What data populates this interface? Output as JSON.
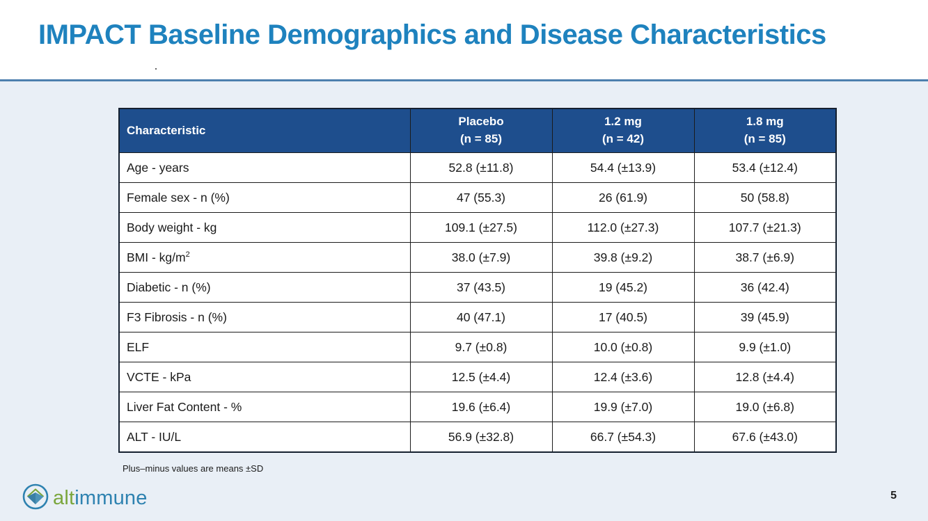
{
  "slide": {
    "title": "IMPACT Baseline Demographics and Disease Characteristics",
    "page_number": "5"
  },
  "table": {
    "header": {
      "characteristic": "Characteristic",
      "columns": [
        {
          "line1": "Placebo",
          "line2": "(n = 85)"
        },
        {
          "line1": "1.2 mg",
          "line2": "(n = 42)"
        },
        {
          "line1": "1.8 mg",
          "line2": "(n = 85)"
        }
      ]
    },
    "rows": [
      {
        "label": "Age - years",
        "values": [
          "52.8 (±11.8)",
          "54.4 (±13.9)",
          "53.4 (±12.4)"
        ]
      },
      {
        "label": "Female sex - n (%)",
        "values": [
          "47 (55.3)",
          "26 (61.9)",
          "50 (58.8)"
        ]
      },
      {
        "label": "Body weight - kg",
        "values": [
          "109.1 (±27.5)",
          "112.0 (±27.3)",
          "107.7 (±21.3)"
        ]
      },
      {
        "label": "BMI -  kg/m",
        "label_sup": "2",
        "values": [
          "38.0 (±7.9)",
          "39.8 (±9.2)",
          "38.7 (±6.9)"
        ]
      },
      {
        "label": "Diabetic - n (%)",
        "values": [
          "37 (43.5)",
          "19 (45.2)",
          "36 (42.4)"
        ]
      },
      {
        "label": "F3 Fibrosis - n (%)",
        "values": [
          "40 (47.1)",
          "17 (40.5)",
          "39 (45.9)"
        ]
      },
      {
        "label": "ELF",
        "values": [
          "9.7 (±0.8)",
          "10.0 (±0.8)",
          "9.9 (±1.0)"
        ]
      },
      {
        "label": "VCTE - kPa",
        "values": [
          "12.5 (±4.4)",
          "12.4 (±3.6)",
          "12.8 (±4.4)"
        ]
      },
      {
        "label": "Liver Fat Content - %",
        "values": [
          "19.6 (±6.4)",
          "19.9 (±7.0)",
          "19.0 (±6.8)"
        ]
      },
      {
        "label": "ALT - IU/L",
        "values": [
          "56.9 (±32.8)",
          "66.7 (±54.3)",
          "67.6 (±43.0)"
        ]
      }
    ]
  },
  "footnote": "Plus–minus values are means ±SD",
  "logo": {
    "alt": "alt",
    "immune": "immune"
  },
  "colors": {
    "title_blue": "#1E82BE",
    "table_header_blue": "#1E4E8D",
    "body_background": "#E9EFF6",
    "divider_blue": "#4D7FAE",
    "logo_green": "#7AA63C",
    "logo_blue": "#2E82B0"
  }
}
